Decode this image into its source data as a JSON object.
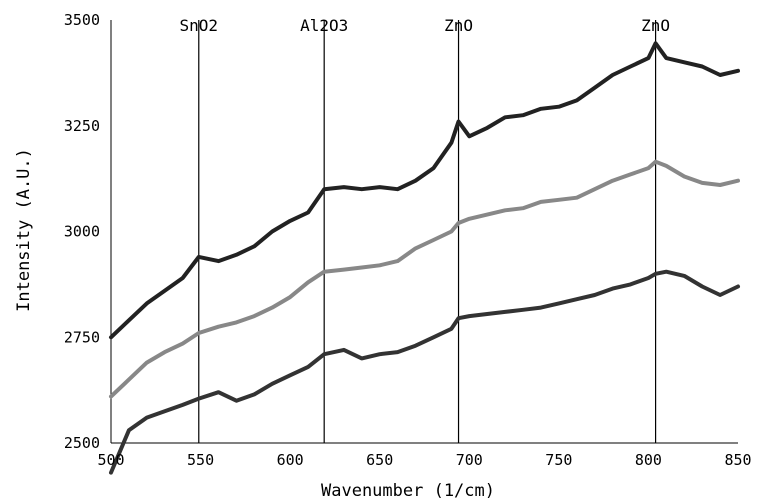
{
  "chart_data": {
    "type": "line",
    "xlabel": "Wavenumber (1/cm)",
    "ylabel": "Intensity (A.U.)",
    "xlim": [
      500,
      850
    ],
    "ylim": [
      2500,
      3500
    ],
    "xticks": [
      "500",
      "550",
      "600",
      "650",
      "700",
      "750",
      "800",
      "850"
    ],
    "yticks": [
      "3500",
      "3250",
      "3000",
      "2750",
      "2500"
    ],
    "grid": false,
    "peak_markers": [
      {
        "x": 549,
        "label": "SnO2"
      },
      {
        "x": 619,
        "label": "Al2O3"
      },
      {
        "x": 694,
        "label": "ZnO"
      },
      {
        "x": 804,
        "label": "ZnO"
      }
    ],
    "series": [
      {
        "color": "#222222",
        "x": [
          500,
          510,
          520,
          530,
          540,
          549,
          560,
          570,
          580,
          590,
          600,
          610,
          619,
          630,
          640,
          650,
          660,
          670,
          680,
          690,
          694,
          700,
          710,
          720,
          730,
          740,
          750,
          760,
          770,
          780,
          790,
          800,
          804,
          810,
          820,
          830,
          840,
          850
        ],
        "y": [
          2750,
          2790,
          2830,
          2860,
          2890,
          2940,
          2930,
          2945,
          2965,
          3000,
          3025,
          3045,
          3100,
          3105,
          3100,
          3105,
          3100,
          3120,
          3150,
          3210,
          3260,
          3225,
          3245,
          3270,
          3275,
          3290,
          3295,
          3310,
          3340,
          3370,
          3390,
          3410,
          3445,
          3410,
          3400,
          3390,
          3370,
          3380
        ]
      },
      {
        "color": "#888888",
        "x": [
          500,
          510,
          520,
          530,
          540,
          549,
          560,
          570,
          580,
          590,
          600,
          610,
          619,
          630,
          640,
          650,
          660,
          670,
          680,
          690,
          694,
          700,
          710,
          720,
          730,
          740,
          750,
          760,
          770,
          780,
          790,
          800,
          804,
          810,
          820,
          830,
          840,
          850
        ],
        "y": [
          2610,
          2650,
          2690,
          2715,
          2735,
          2760,
          2775,
          2785,
          2800,
          2820,
          2845,
          2880,
          2905,
          2910,
          2915,
          2920,
          2930,
          2960,
          2980,
          3000,
          3020,
          3030,
          3040,
          3050,
          3055,
          3070,
          3075,
          3080,
          3100,
          3120,
          3135,
          3150,
          3165,
          3155,
          3130,
          3115,
          3110,
          3120
        ]
      },
      {
        "color": "#333333",
        "x": [
          500,
          510,
          520,
          530,
          540,
          549,
          560,
          570,
          580,
          590,
          600,
          610,
          619,
          630,
          640,
          650,
          660,
          670,
          680,
          690,
          694,
          700,
          710,
          720,
          730,
          740,
          750,
          760,
          770,
          780,
          790,
          800,
          804,
          810,
          820,
          830,
          840,
          850
        ],
        "y": [
          2430,
          2530,
          2560,
          2575,
          2590,
          2605,
          2620,
          2600,
          2615,
          2640,
          2660,
          2680,
          2710,
          2720,
          2700,
          2710,
          2715,
          2730,
          2750,
          2770,
          2795,
          2800,
          2805,
          2810,
          2815,
          2820,
          2830,
          2840,
          2850,
          2865,
          2875,
          2890,
          2900,
          2905,
          2895,
          2870,
          2850,
          2870
        ]
      }
    ]
  }
}
